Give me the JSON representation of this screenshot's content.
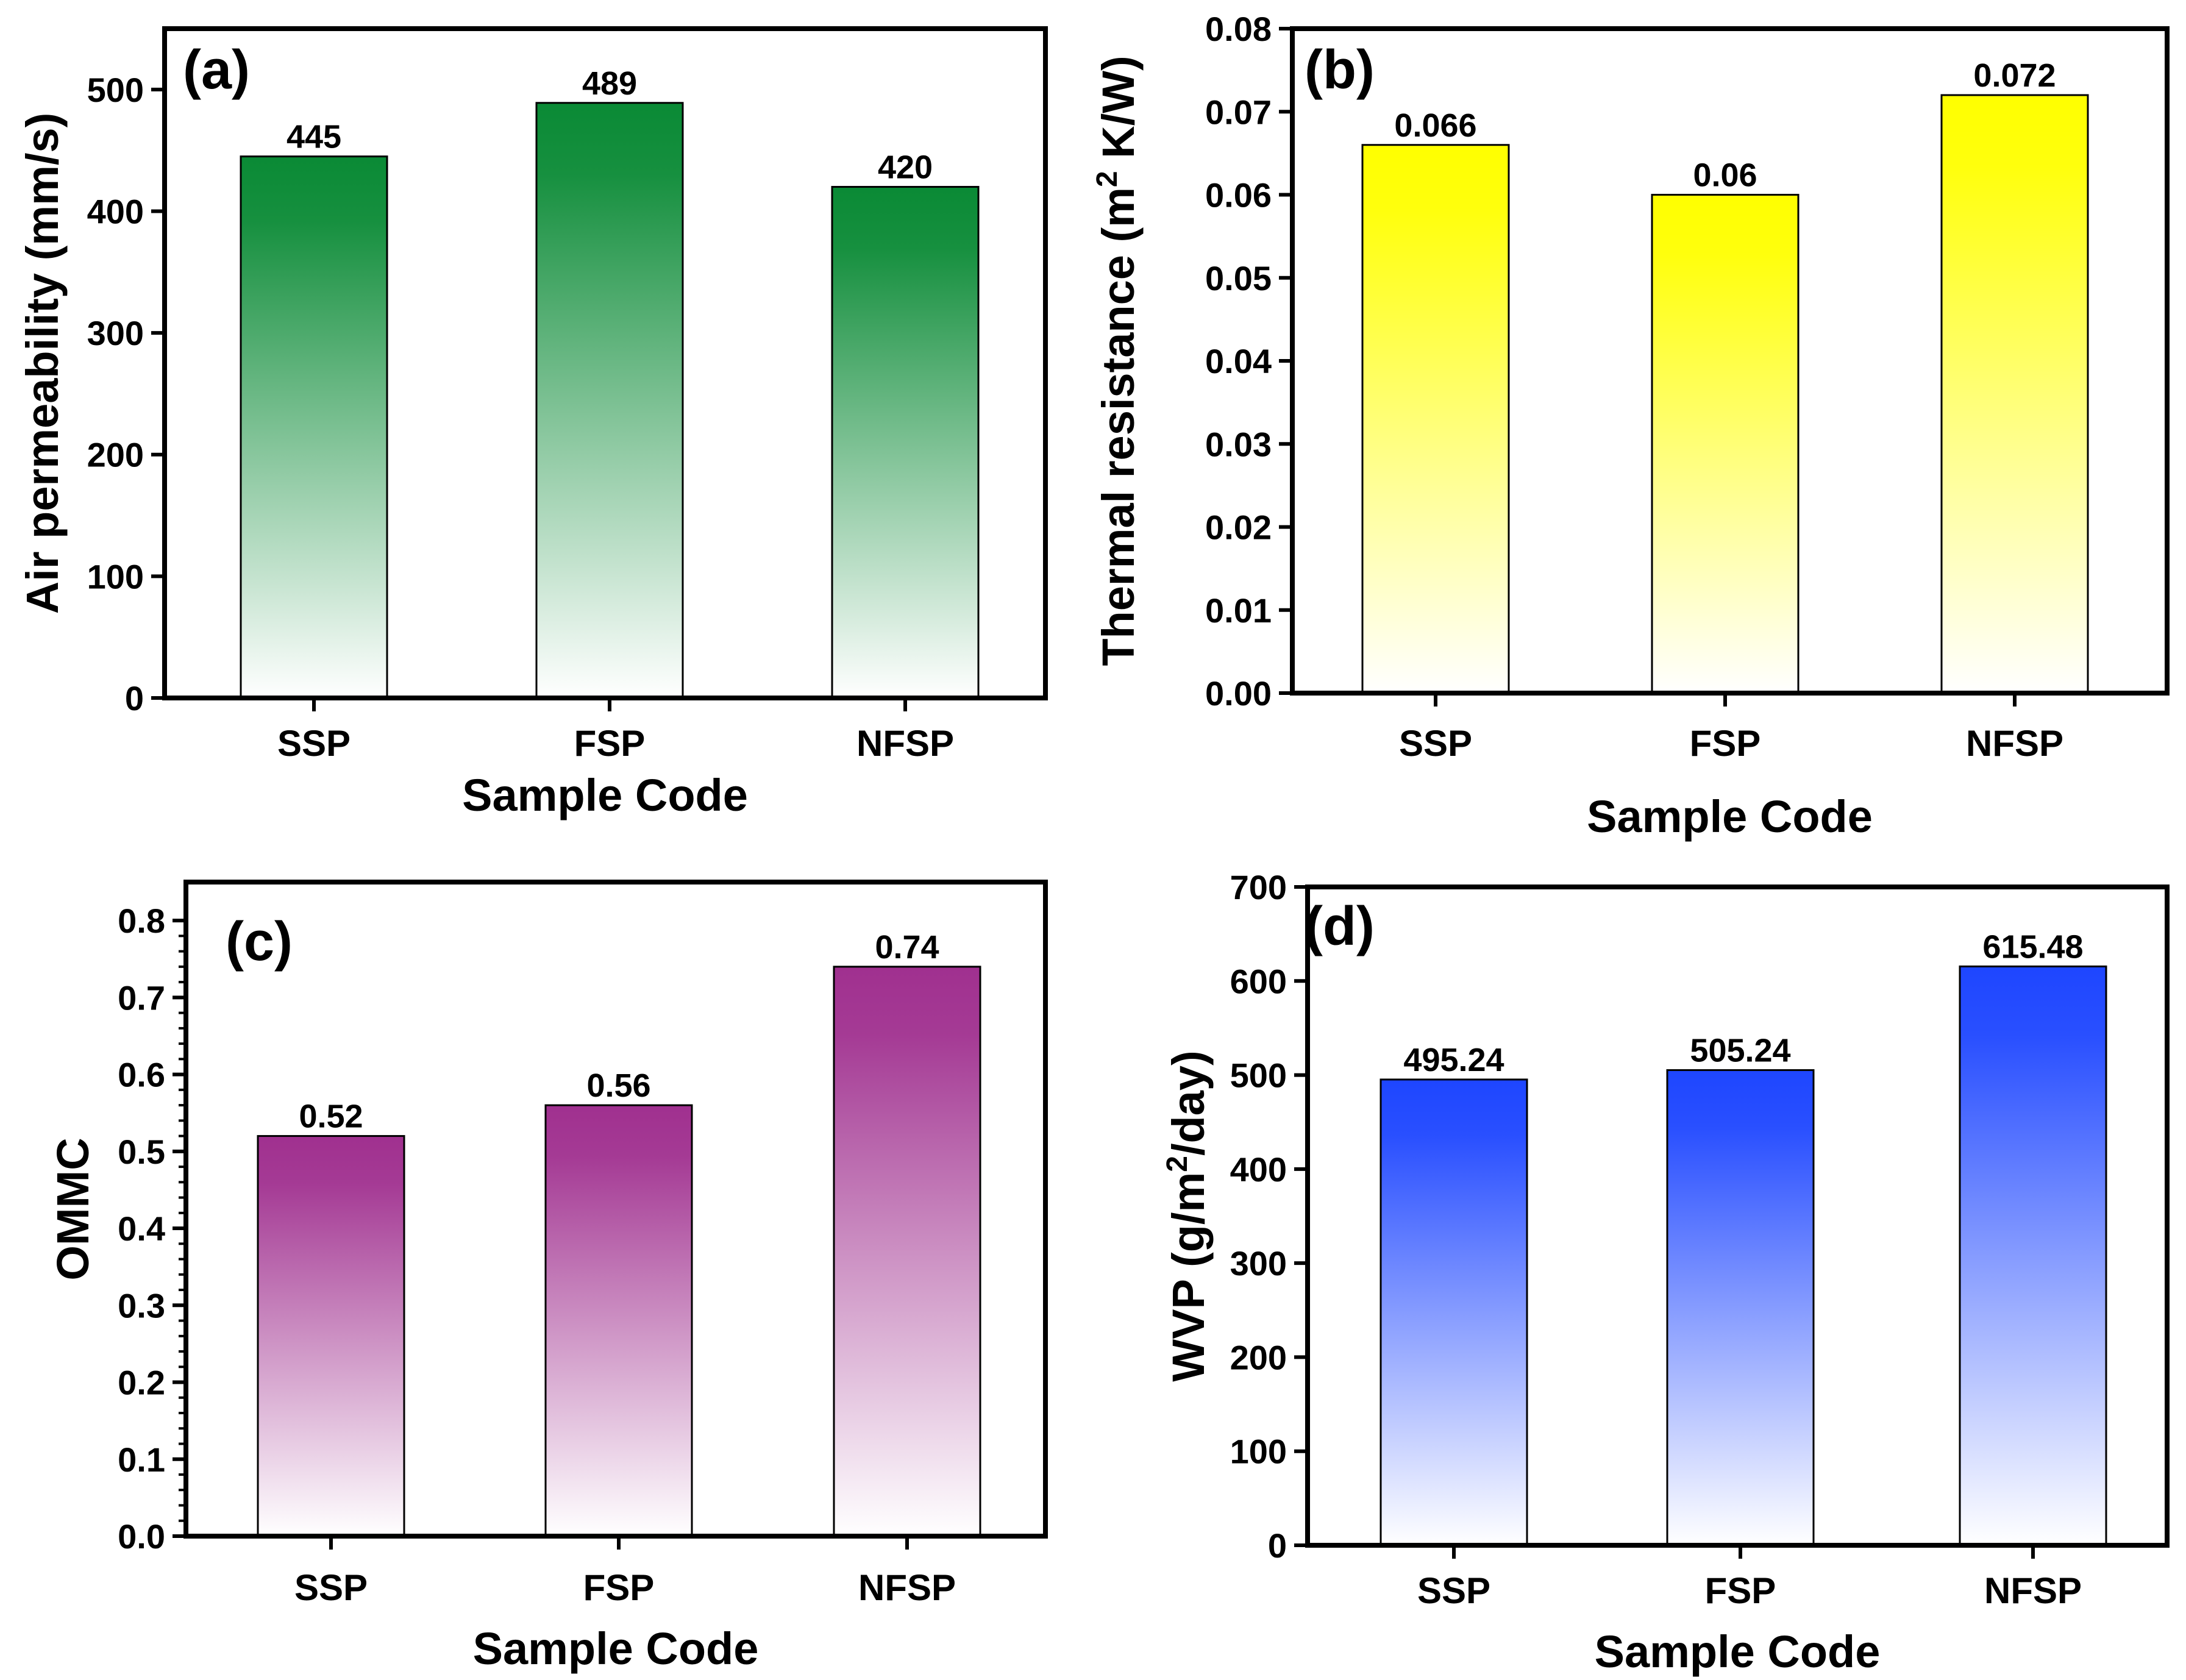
{
  "chart_data": [
    {
      "type": "bar",
      "panel_label": "(a)",
      "categories": [
        "SSP",
        "FSP",
        "NFSP"
      ],
      "values": [
        445,
        489,
        420
      ],
      "value_labels": [
        "445",
        "489",
        "420"
      ],
      "xlabel": "Sample Code",
      "ylabel": "Air permeability (mm/s)",
      "ylim": [
        0,
        550
      ],
      "yticks": [
        0,
        100,
        200,
        300,
        400,
        500
      ],
      "ytick_labels": [
        "0",
        "100",
        "200",
        "300",
        "400",
        "500"
      ],
      "bar_color": "#0a8a35"
    },
    {
      "type": "bar",
      "panel_label": "(b)",
      "categories": [
        "SSP",
        "FSP",
        "NFSP"
      ],
      "values": [
        0.066,
        0.06,
        0.072
      ],
      "value_labels": [
        "0.066",
        "0.06",
        "0.072"
      ],
      "xlabel": "Sample Code",
      "ylabel": "Thermal resistance (m",
      "ylabel_sup": "2",
      "ylabel_tail": " K/W)",
      "ylim": [
        0,
        0.08
      ],
      "yticks": [
        0,
        0.01,
        0.02,
        0.03,
        0.04,
        0.05,
        0.06,
        0.07,
        0.08
      ],
      "ytick_labels": [
        "0.00",
        "0.01",
        "0.02",
        "0.03",
        "0.04",
        "0.05",
        "0.06",
        "0.07",
        "0.08"
      ],
      "bar_color": "#ffff00"
    },
    {
      "type": "bar",
      "panel_label": "(c)",
      "categories": [
        "SSP",
        "FSP",
        "NFSP"
      ],
      "values": [
        0.52,
        0.56,
        0.74
      ],
      "value_labels": [
        "0.52",
        "0.56",
        "0.74"
      ],
      "xlabel": "Sample Code",
      "ylabel": "OMMC",
      "ylim": [
        0,
        0.85
      ],
      "yticks": [
        0,
        0.1,
        0.2,
        0.3,
        0.4,
        0.5,
        0.6,
        0.7,
        0.8
      ],
      "ytick_labels": [
        "0.0",
        "0.1",
        "0.2",
        "0.3",
        "0.4",
        "0.5",
        "0.6",
        "0.7",
        "0.8"
      ],
      "bar_color": "#a0308f"
    },
    {
      "type": "bar",
      "panel_label": "(d)",
      "categories": [
        "SSP",
        "FSP",
        "NFSP"
      ],
      "values": [
        495.24,
        505.24,
        615.48
      ],
      "value_labels": [
        "495.24",
        "505.24",
        "615.48"
      ],
      "xlabel": "Sample Code",
      "ylabel": "WVP (g/m",
      "ylabel_sup": "2",
      "ylabel_tail": "/day)",
      "ylim": [
        0,
        700
      ],
      "yticks": [
        0,
        100,
        200,
        300,
        400,
        500,
        600,
        700
      ],
      "ytick_labels": [
        "0",
        "100",
        "200",
        "300",
        "400",
        "500",
        "600",
        "700"
      ],
      "bar_color": "#1e46ff"
    }
  ]
}
